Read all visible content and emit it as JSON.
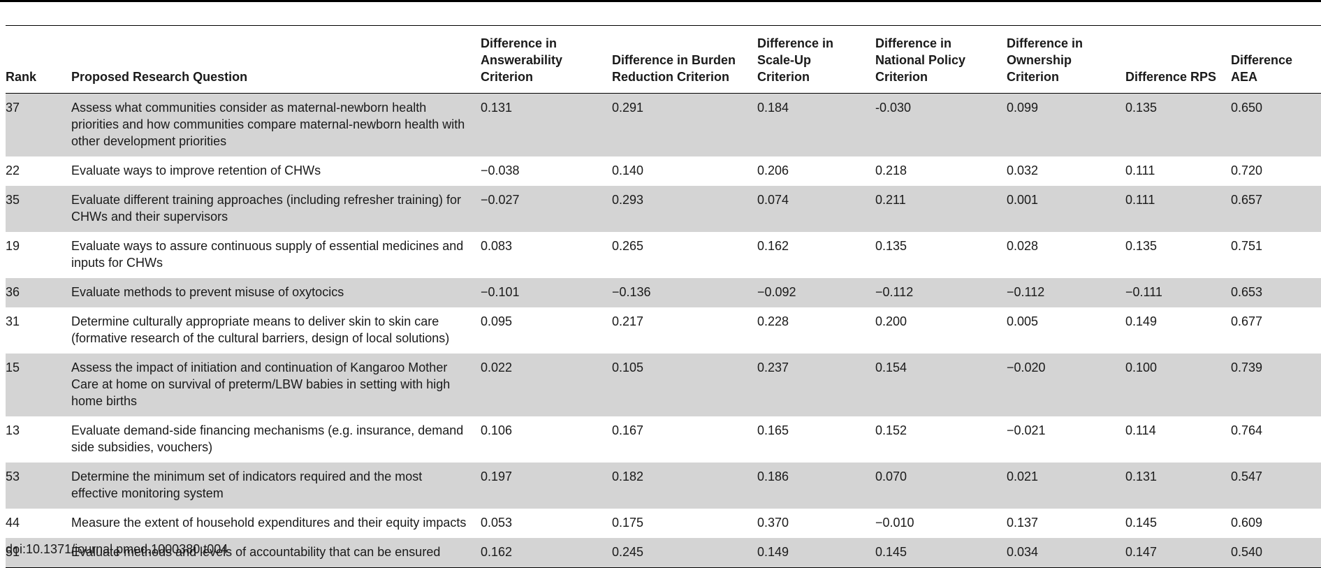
{
  "table": {
    "headers": [
      "Rank",
      "Proposed Research Question",
      "Difference in Answerability Criterion",
      "Difference in Burden Reduction Criterion",
      "Difference in Scale-Up Criterion",
      "Difference in National Policy Criterion",
      "Difference in Ownership Criterion",
      "Difference RPS",
      "Difference AEA"
    ],
    "rows": [
      [
        "37",
        "Assess what communities consider as maternal-newborn health priorities and how communities compare maternal-newborn health with other development priorities",
        "0.131",
        "0.291",
        "0.184",
        "-0.030",
        "0.099",
        "0.135",
        "0.650"
      ],
      [
        "22",
        "Evaluate ways to improve retention of CHWs",
        "−0.038",
        "0.140",
        "0.206",
        "0.218",
        "0.032",
        "0.111",
        "0.720"
      ],
      [
        "35",
        "Evaluate different training approaches (including refresher training) for CHWs and their supervisors",
        "−0.027",
        "0.293",
        "0.074",
        "0.211",
        "0.001",
        "0.111",
        "0.657"
      ],
      [
        "19",
        "Evaluate ways to assure continuous supply of essential medicines and inputs for CHWs",
        "0.083",
        "0.265",
        "0.162",
        "0.135",
        "0.028",
        "0.135",
        "0.751"
      ],
      [
        "36",
        "Evaluate methods to prevent misuse of oxytocics",
        "−0.101",
        "−0.136",
        "−0.092",
        "−0.112",
        "−0.112",
        "−0.111",
        "0.653"
      ],
      [
        "31",
        "Determine culturally appropriate means to deliver skin to skin care (formative research of the cultural barriers, design of local solutions)",
        "0.095",
        "0.217",
        "0.228",
        "0.200",
        "0.005",
        "0.149",
        "0.677"
      ],
      [
        "15",
        "Assess the impact of initiation and continuation of Kangaroo Mother Care at home on survival of preterm/LBW babies in setting with high home births",
        "0.022",
        "0.105",
        "0.237",
        "0.154",
        "−0.020",
        "0.100",
        "0.739"
      ],
      [
        "13",
        "Evaluate demand-side financing mechanisms (e.g. insurance, demand side subsidies, vouchers)",
        "0.106",
        "0.167",
        "0.165",
        "0.152",
        "−0.021",
        "0.114",
        "0.764"
      ],
      [
        "53",
        "Determine the minimum set of indicators required and the most effective monitoring system",
        "0.197",
        "0.182",
        "0.186",
        "0.070",
        "0.021",
        "0.131",
        "0.547"
      ],
      [
        "44",
        "Measure the extent of household expenditures and their equity impacts",
        "0.053",
        "0.175",
        "0.370",
        "−0.010",
        "0.137",
        "0.145",
        "0.609"
      ],
      [
        "51",
        "Evaluate methods and levels of accountability that can be ensured",
        "0.162",
        "0.245",
        "0.149",
        "0.145",
        "0.034",
        "0.147",
        "0.540"
      ]
    ]
  },
  "footer": {
    "doi": "doi:10.1371/journal.pmed.1000380.t004"
  },
  "colors": {
    "shaded_row": "#d4d4d4",
    "rule": "#000000"
  }
}
